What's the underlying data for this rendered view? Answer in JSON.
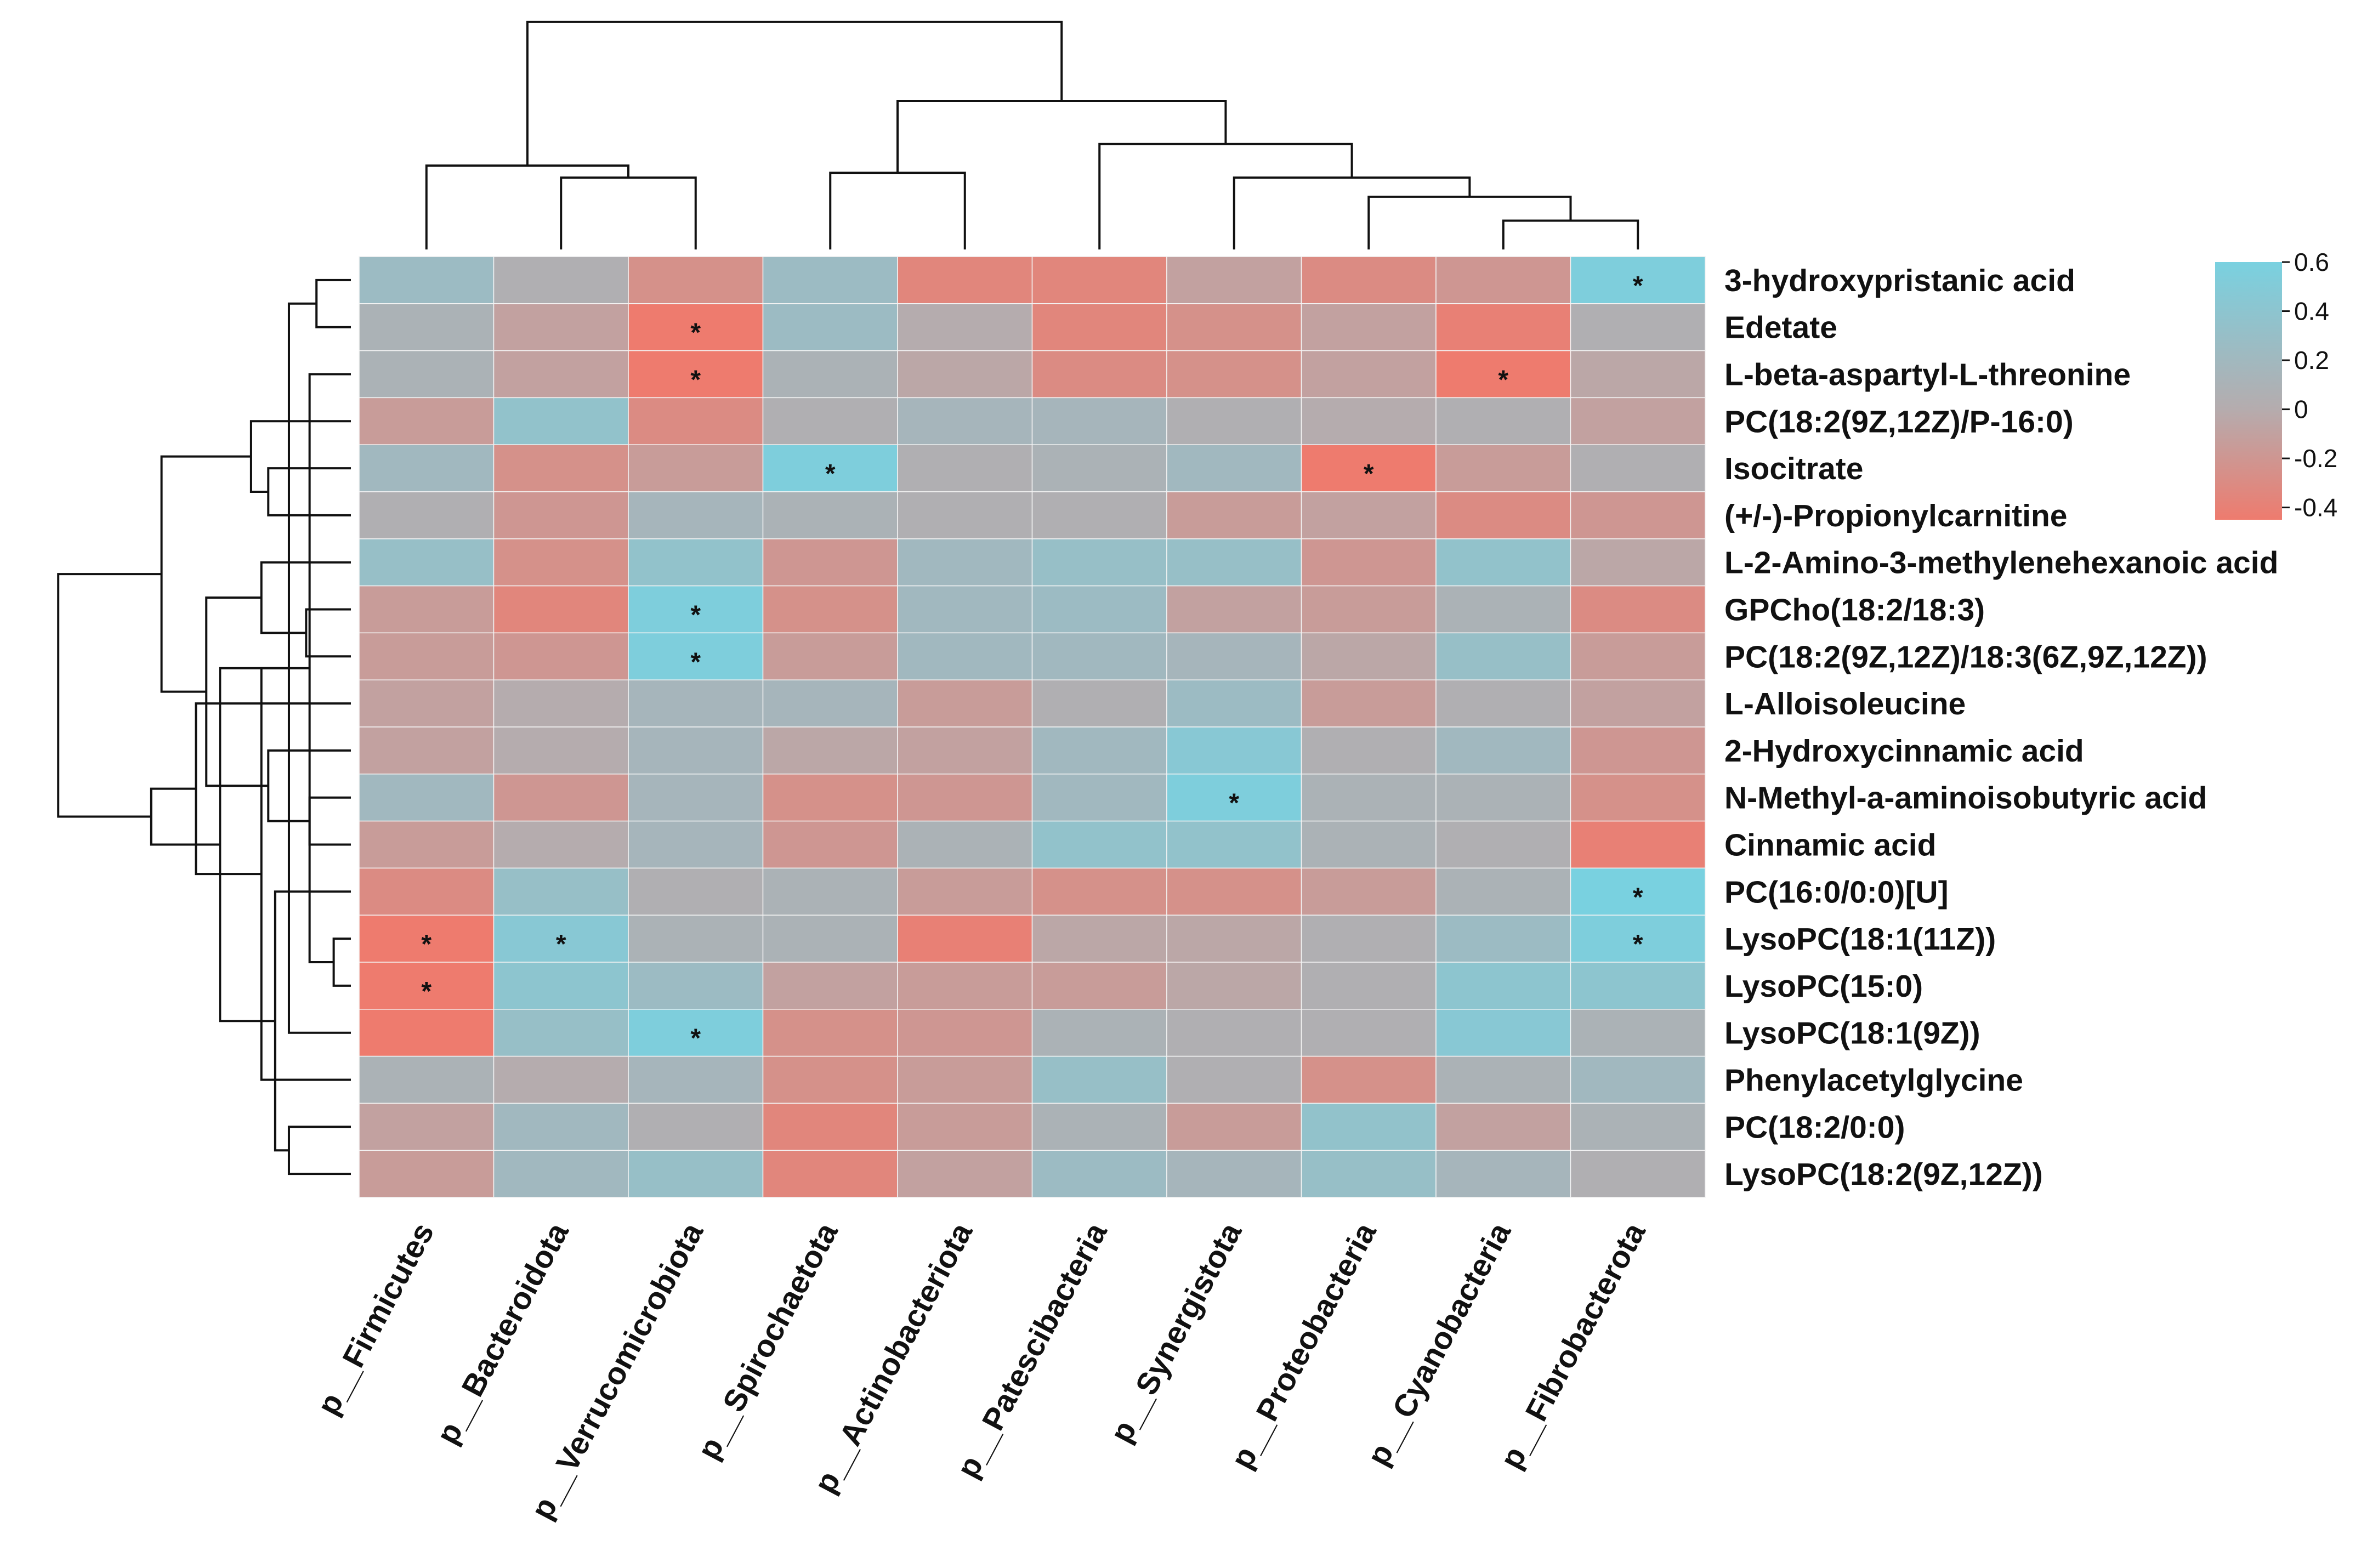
{
  "chart_data": {
    "type": "heatmap",
    "title": "",
    "columns": [
      "p__Firmicutes",
      "p__Bacteroidota",
      "p__Verrucomicrobiota",
      "p__Spirochaetota",
      "p__Actinobacteriota",
      "p__Patescibacteria",
      "p__Synergistota",
      "p__Proteobacteria",
      "p__Cyanobacteria",
      "p__Fibrobacterota"
    ],
    "rows": [
      "3-hydroxypristanic acid",
      "Edetate",
      "L-beta-aspartyl-L-threonine",
      "PC(18:2(9Z,12Z)/P-16:0)",
      "Isocitrate",
      "(+/-)-Propionylcarnitine",
      "L-2-Amino-3-methylenehexanoic acid",
      "GPCho(18:2/18:3)",
      "PC(18:2(9Z,12Z)/18:3(6Z,9Z,12Z))",
      "L-Alloisoleucine",
      "2-Hydroxycinnamic acid",
      "N-Methyl-a-aminoisobutyric acid",
      "Cinnamic acid",
      "PC(16:0/0:0)[U]",
      "LysoPC(18:1(11Z))",
      "LysoPC(15:0)",
      "LysoPC(18:1(9Z))",
      "Phenylacetylglycine",
      "PC(18:2/0:0)",
      "LysoPC(18:2(9Z,12Z))"
    ],
    "values": [
      [
        0.25,
        0.05,
        -0.25,
        0.25,
        -0.35,
        -0.35,
        -0.1,
        -0.3,
        -0.2,
        0.55
      ],
      [
        0.1,
        -0.1,
        -0.45,
        0.25,
        0.0,
        -0.35,
        -0.25,
        -0.1,
        -0.4,
        0.05
      ],
      [
        0.1,
        -0.1,
        -0.45,
        0.1,
        -0.05,
        -0.3,
        -0.25,
        -0.1,
        -0.45,
        -0.05
      ],
      [
        -0.15,
        0.35,
        -0.3,
        0.05,
        0.15,
        0.15,
        0.05,
        0.0,
        0.05,
        -0.1
      ],
      [
        0.2,
        -0.25,
        -0.15,
        0.55,
        0.05,
        0.1,
        0.2,
        -0.45,
        -0.15,
        0.05
      ],
      [
        0.05,
        -0.2,
        0.15,
        0.1,
        0.05,
        0.05,
        -0.15,
        -0.1,
        -0.3,
        -0.2
      ],
      [
        0.3,
        -0.25,
        0.35,
        -0.2,
        0.2,
        0.3,
        0.3,
        -0.2,
        0.35,
        -0.05
      ],
      [
        -0.15,
        -0.35,
        0.55,
        -0.25,
        0.2,
        0.25,
        -0.1,
        -0.15,
        0.1,
        -0.3
      ],
      [
        -0.15,
        -0.2,
        0.55,
        -0.15,
        0.2,
        0.2,
        0.15,
        -0.05,
        0.3,
        -0.15
      ],
      [
        -0.1,
        0.0,
        0.15,
        0.15,
        -0.15,
        0.05,
        0.25,
        -0.15,
        0.05,
        -0.1
      ],
      [
        -0.1,
        0.0,
        0.15,
        -0.05,
        -0.1,
        0.2,
        0.45,
        0.05,
        0.2,
        -0.2
      ],
      [
        0.2,
        -0.2,
        0.15,
        -0.25,
        -0.2,
        0.2,
        0.55,
        0.1,
        0.1,
        -0.25
      ],
      [
        -0.15,
        0.0,
        0.15,
        -0.2,
        0.1,
        0.35,
        0.35,
        0.1,
        0.05,
        -0.4
      ],
      [
        -0.3,
        0.3,
        0.05,
        0.1,
        -0.15,
        -0.25,
        -0.25,
        -0.15,
        0.1,
        0.6
      ],
      [
        -0.45,
        0.45,
        0.1,
        0.1,
        -0.4,
        -0.05,
        -0.05,
        0.05,
        0.25,
        0.55
      ],
      [
        -0.45,
        0.4,
        0.25,
        -0.1,
        -0.15,
        -0.15,
        -0.05,
        0.05,
        0.4,
        0.4
      ],
      [
        -0.45,
        0.3,
        0.55,
        -0.25,
        -0.2,
        0.1,
        0.05,
        0.05,
        0.45,
        0.1
      ],
      [
        0.1,
        0.0,
        0.15,
        -0.25,
        -0.15,
        0.3,
        0.05,
        -0.25,
        0.1,
        0.2
      ],
      [
        -0.1,
        0.2,
        0.05,
        -0.35,
        -0.15,
        0.1,
        -0.15,
        0.35,
        -0.1,
        0.1
      ],
      [
        -0.15,
        0.2,
        0.3,
        -0.35,
        -0.1,
        0.25,
        0.15,
        0.3,
        0.15,
        0.05
      ]
    ],
    "significance_marker": "*",
    "significant_cells": [
      [
        0,
        9
      ],
      [
        1,
        2
      ],
      [
        2,
        2
      ],
      [
        2,
        8
      ],
      [
        4,
        3
      ],
      [
        4,
        7
      ],
      [
        7,
        2
      ],
      [
        8,
        2
      ],
      [
        11,
        6
      ],
      [
        13,
        9
      ],
      [
        14,
        0
      ],
      [
        14,
        1
      ],
      [
        14,
        9
      ],
      [
        15,
        0
      ],
      [
        16,
        2
      ]
    ],
    "colorbar": {
      "min": -0.45,
      "max": 0.6,
      "ticks": [
        0.6,
        0.4,
        0.2,
        0,
        -0.2,
        -0.4
      ],
      "tick_labels": [
        "0.6",
        "0.4",
        "0.2",
        "0",
        "-0.2",
        "-0.4"
      ],
      "low_color": "#ee7b6e",
      "mid_color": "#b5acae",
      "high_color": "#79d1e0",
      "placement": "top-right"
    },
    "row_dendrogram": [
      [
        14,
        15,
        0.05
      ],
      [
        0,
        1,
        0.1
      ],
      [
        2,
        20,
        0.12
      ],
      [
        11,
        12,
        0.12
      ],
      [
        7,
        8,
        0.13
      ],
      [
        16,
        21,
        0.18
      ],
      [
        18,
        19,
        0.18
      ],
      [
        13,
        26,
        0.22
      ],
      [
        4,
        5,
        0.24
      ],
      [
        10,
        23,
        0.24
      ],
      [
        6,
        24,
        0.26
      ],
      [
        17,
        25,
        0.26
      ],
      [
        3,
        28,
        0.29
      ],
      [
        22,
        27,
        0.38
      ],
      [
        29,
        30,
        0.42
      ],
      [
        9,
        31,
        0.45
      ],
      [
        32,
        34,
        0.55
      ],
      [
        33,
        35,
        0.58
      ],
      [
        36,
        37,
        0.85
      ]
    ],
    "column_dendrogram": [
      [
        8,
        9,
        0.12
      ],
      [
        7,
        10,
        0.22
      ],
      [
        1,
        2,
        0.3
      ],
      [
        6,
        11,
        0.3
      ],
      [
        3,
        4,
        0.32
      ],
      [
        0,
        12,
        0.35
      ],
      [
        5,
        13,
        0.44
      ],
      [
        14,
        16,
        0.62
      ],
      [
        15,
        17,
        0.95
      ]
    ]
  }
}
